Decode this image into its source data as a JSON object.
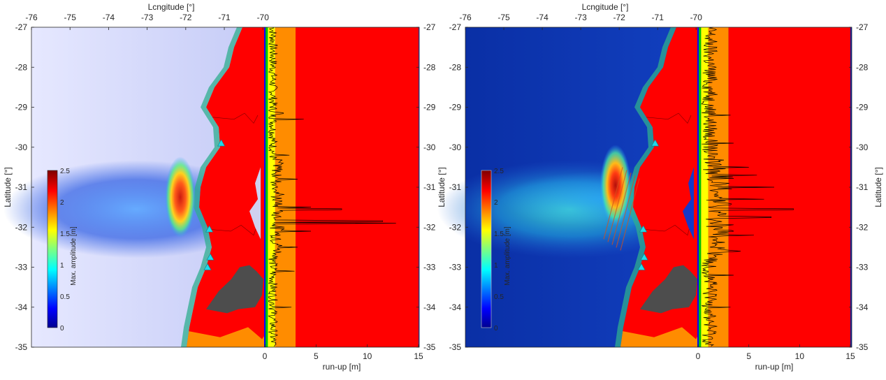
{
  "chart_data": [
    {
      "type": "map",
      "top_axis_label": "Lcngitude [°]",
      "left_axis_label": "Latitude [°]",
      "right_axis_label": "",
      "bottom_axis_label": "run-up [m]",
      "longitude_ticks": [
        "-76",
        "-75",
        "-74",
        "-73",
        "-72",
        "-71",
        "-70"
      ],
      "latitude_ticks": [
        "-27",
        "-28",
        "-29",
        "-30",
        "-31",
        "-32",
        "-33",
        "-34",
        "-35"
      ],
      "runup_ticks": [
        "0",
        "5",
        "10",
        "15"
      ],
      "xlim": [
        -76,
        -69.2
      ],
      "ylim": [
        -35,
        -27
      ],
      "runup_xlim": [
        0,
        15
      ],
      "colorbar": {
        "label": "Max. amplitude [m]",
        "ticks": [
          "0",
          "0.5",
          "1",
          "1.5",
          "2",
          "2.5"
        ],
        "range": [
          0,
          2.5
        ]
      },
      "runup_band_limits_m": [
        0,
        0.3,
        1,
        3,
        15
      ],
      "runup_band_colors": [
        "#00c000",
        "#ffff00",
        "#ff8c00",
        "#ff0000"
      ],
      "stations": [
        [
          -71.4,
          -29.9
        ],
        [
          -71.55,
          -32.05
        ],
        [
          -71.6,
          -32.75
        ],
        [
          -71.65,
          -33.0
        ]
      ],
      "peak_source": [
        -71.98,
        -31.25
      ],
      "runup_peaks": [
        [
          -29.15,
          1.8
        ],
        [
          -29.3,
          3.8
        ],
        [
          -30.2,
          2.4
        ],
        [
          -30.8,
          3.2
        ],
        [
          -31.5,
          4.5
        ],
        [
          -31.55,
          7.5
        ],
        [
          -31.85,
          11.5
        ],
        [
          -31.9,
          12.8
        ],
        [
          -32.1,
          4.5
        ],
        [
          -32.5,
          3.2
        ],
        [
          -33.1,
          2.9
        ],
        [
          -34.0,
          2.6
        ]
      ]
    },
    {
      "type": "map",
      "top_axis_label": "Lcngitude [°]",
      "left_axis_label": "Latitude [°]",
      "right_axis_label": "Latitude [°]",
      "bottom_axis_label": "run-up [m]",
      "longitude_ticks": [
        "-76",
        "-75",
        "-74",
        "-73",
        "-72",
        "-71",
        "-70"
      ],
      "latitude_ticks": [
        "-27",
        "-28",
        "-29",
        "-30",
        "-31",
        "-32",
        "-33",
        "-34",
        "-35"
      ],
      "runup_ticks": [
        "0",
        "5",
        "10",
        "15"
      ],
      "xlim": [
        -76,
        -69.2
      ],
      "ylim": [
        -35,
        -27
      ],
      "runup_xlim": [
        0,
        15
      ],
      "colorbar": {
        "label": "Max. amplitude [m]",
        "ticks": [
          "0",
          "0.5",
          "1",
          "1.5",
          "2",
          "2.5"
        ],
        "range": [
          0,
          2.5
        ]
      },
      "runup_band_limits_m": [
        0,
        0.3,
        1,
        3,
        15
      ],
      "runup_band_colors": [
        "#00c000",
        "#ffff00",
        "#ff8c00",
        "#ff0000"
      ],
      "stations": [
        [
          -71.4,
          -29.9
        ],
        [
          -71.55,
          -32.05
        ],
        [
          -71.6,
          -32.75
        ],
        [
          -71.65,
          -33.0
        ]
      ],
      "peak_source": [
        -71.85,
        -30.95
      ],
      "runup_peaks": [
        [
          -29.2,
          3.2
        ],
        [
          -29.9,
          3.5
        ],
        [
          -30.5,
          5.0
        ],
        [
          -30.7,
          5.8
        ],
        [
          -31.0,
          7.5
        ],
        [
          -31.3,
          6.5
        ],
        [
          -31.55,
          9.4
        ],
        [
          -31.75,
          7.2
        ],
        [
          -32.2,
          5.5
        ],
        [
          -32.6,
          4.2
        ],
        [
          -33.2,
          3.5
        ],
        [
          -34.0,
          3.2
        ]
      ]
    }
  ],
  "colors": {
    "land": "#ff0000",
    "dark_area": "#4d4d4d",
    "orange_area": "#ff8c00",
    "lake": "#d0d0f0",
    "station_marker": "#22d8e8",
    "axis_text": "#262626"
  }
}
